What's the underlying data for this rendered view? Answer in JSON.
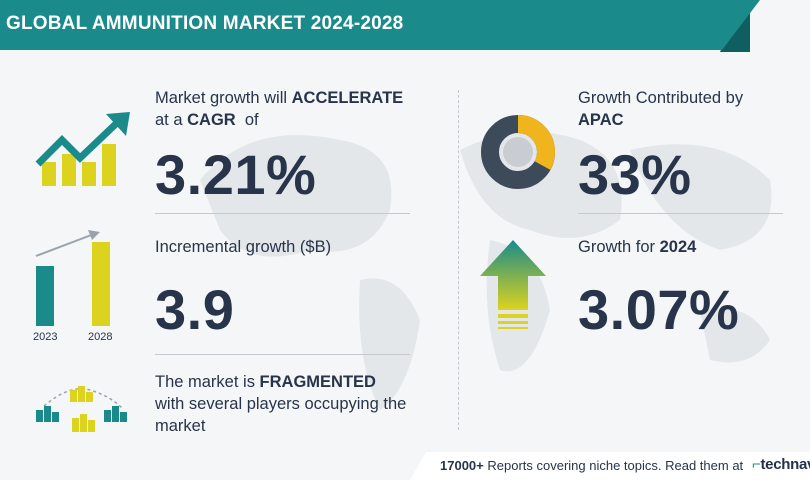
{
  "header": {
    "title": "GLOBAL AMMUNITION MARKET 2024-2028"
  },
  "cagr": {
    "line1_prefix": "Market growth will ",
    "line1_bold": "ACCELERATE",
    "line2_prefix": "at a ",
    "line2_bold": "CAGR",
    "line2_suffix": "  of",
    "value": "3.21%"
  },
  "incremental": {
    "label": "Incremental growth ($B)",
    "value": "3.9",
    "bar_years": [
      "2023",
      "2028"
    ]
  },
  "fragmented": {
    "line1_prefix": "The market is ",
    "line1_bold": "FRAGMENTED",
    "line2": "with several players occupying the",
    "line3": "market"
  },
  "apac": {
    "line1": "Growth Contributed by",
    "line2_bold": "APAC",
    "value": "33%",
    "share": 0.33
  },
  "growth_2024": {
    "label_prefix": "Growth for ",
    "label_bold": "2024",
    "value": "3.07%"
  },
  "footer": {
    "count": "17000+",
    "text": " Reports covering niche topics. Read them at",
    "brand": "technav"
  },
  "colors": {
    "teal": "#1a8b8a",
    "dark": "#27344a",
    "yellow": "#dcd31e",
    "donut_dark": "#3d4a5a",
    "donut_yellow": "#f0b51c"
  }
}
